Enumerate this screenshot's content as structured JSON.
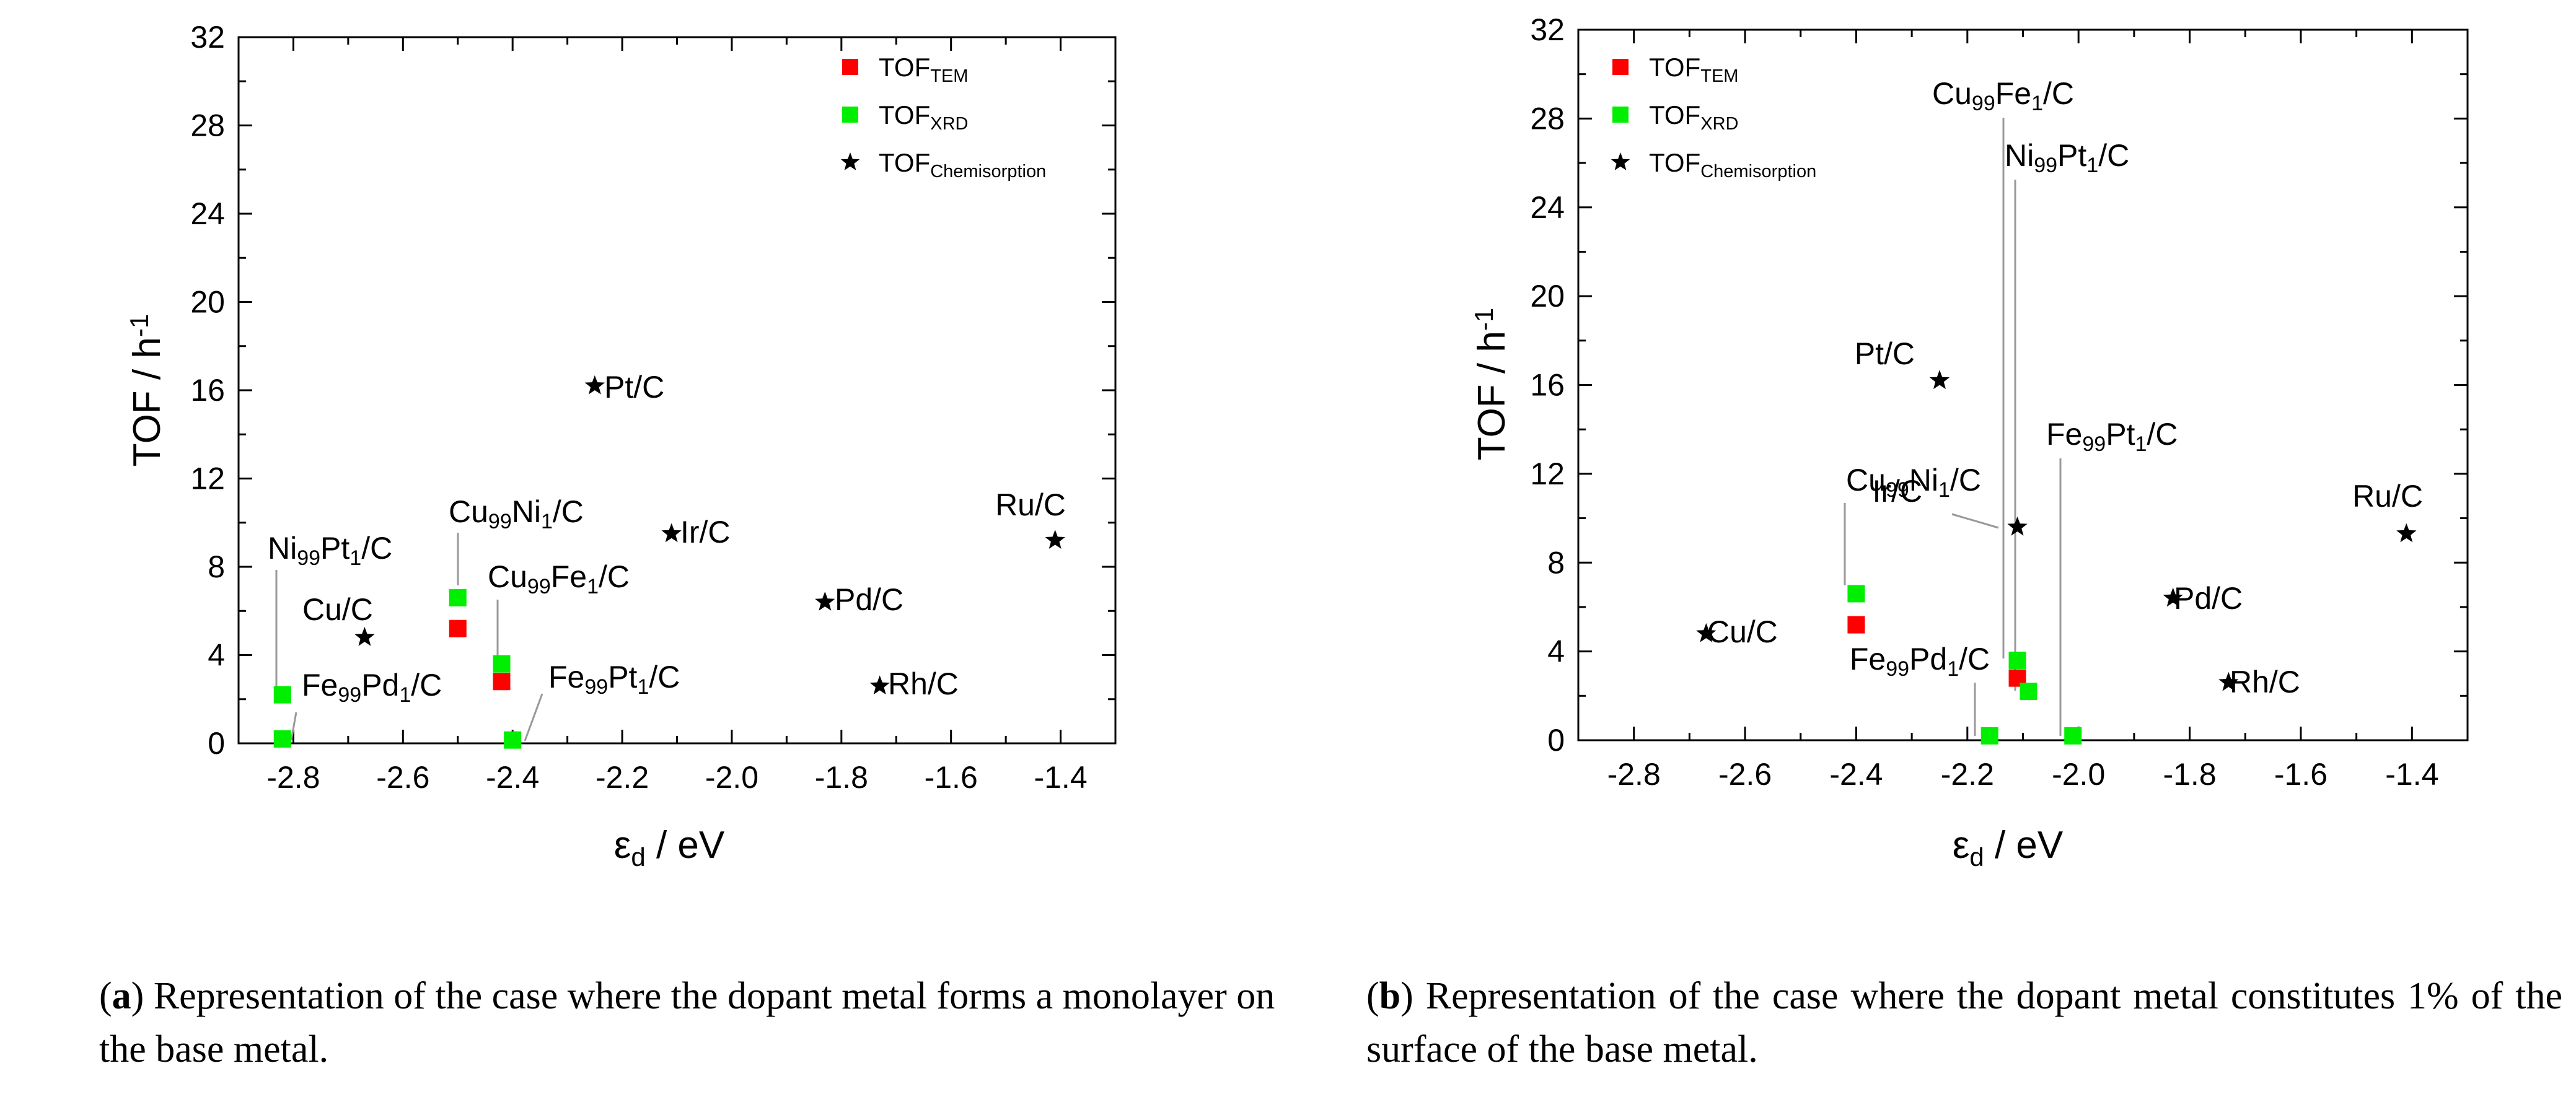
{
  "chart_data": [
    {
      "type": "scatter",
      "panel": "a",
      "xlabel": "ε",
      "xlabel_sub": "d",
      "xlabel_unit": "/  eV",
      "ylabel": "TOF  /  h",
      "ylabel_sup": "-1",
      "xlim": [
        -2.9,
        -1.3
      ],
      "ylim": [
        0,
        32
      ],
      "xticks": [
        -2.8,
        -2.6,
        -2.4,
        -2.2,
        -2.0,
        -1.8,
        -1.6,
        -1.4
      ],
      "yticks": [
        0,
        4,
        8,
        12,
        16,
        20,
        24,
        28,
        32
      ],
      "legend": [
        {
          "marker": "square",
          "color": "#ff0000",
          "label": "TOF",
          "sub": "TEM"
        },
        {
          "marker": "square",
          "color": "#00ee00",
          "label": "TOF",
          "sub": "XRD"
        },
        {
          "marker": "star",
          "color": "#000000",
          "label": "TOF",
          "sub": "Chemisorption"
        }
      ],
      "series": [
        {
          "name": "TOF_TEM",
          "marker": "square",
          "color": "#ff0000",
          "points": [
            {
              "x": -2.5,
              "y": 5.2
            },
            {
              "x": -2.42,
              "y": 2.8
            }
          ]
        },
        {
          "name": "TOF_XRD",
          "marker": "square",
          "color": "#00ee00",
          "points": [
            {
              "x": -2.82,
              "y": 2.2
            },
            {
              "x": -2.82,
              "y": 0.2
            },
            {
              "x": -2.5,
              "y": 6.6
            },
            {
              "x": -2.42,
              "y": 3.6
            },
            {
              "x": -2.4,
              "y": 0.15
            }
          ]
        },
        {
          "name": "TOF_Chemisorption",
          "marker": "star",
          "color": "#000000",
          "points": [
            {
              "x": -2.67,
              "y": 4.8
            },
            {
              "x": -2.25,
              "y": 16.2
            },
            {
              "x": -2.11,
              "y": 9.5
            },
            {
              "x": -1.83,
              "y": 6.4
            },
            {
              "x": -1.73,
              "y": 2.6
            },
            {
              "x": -1.41,
              "y": 9.2
            }
          ]
        }
      ],
      "annotations": [
        {
          "main": "Ni",
          "sub1": "99",
          "mid": "Pt",
          "sub2": "1",
          "tail": "/C"
        },
        {
          "main": "Fe",
          "sub1": "99",
          "mid": "Pd",
          "sub2": "1",
          "tail": "/C"
        },
        {
          "main": "Cu/C"
        },
        {
          "main": "Cu",
          "sub1": "99",
          "mid": "Ni",
          "sub2": "1",
          "tail": "/C"
        },
        {
          "main": "Cu",
          "sub1": "99",
          "mid": "Fe",
          "sub2": "1",
          "tail": "/C"
        },
        {
          "main": "Fe",
          "sub1": "99",
          "mid": "Pt",
          "sub2": "1",
          "tail": "/C"
        },
        {
          "main": "Pt/C"
        },
        {
          "main": "Ir/C"
        },
        {
          "main": "Pd/C"
        },
        {
          "main": "Rh/C"
        },
        {
          "main": "Ru/C"
        }
      ]
    },
    {
      "type": "scatter",
      "panel": "b",
      "xlabel": "ε",
      "xlabel_sub": "d",
      "xlabel_unit": "/  eV",
      "ylabel": "TOF  /  h",
      "ylabel_sup": "-1",
      "xlim": [
        -2.9,
        -1.3
      ],
      "ylim": [
        0,
        32
      ],
      "xticks": [
        -2.8,
        -2.6,
        -2.4,
        -2.2,
        -2.0,
        -1.8,
        -1.6,
        -1.4
      ],
      "yticks": [
        0,
        4,
        8,
        12,
        16,
        20,
        24,
        28,
        32
      ],
      "legend": [
        {
          "marker": "square",
          "color": "#ff0000",
          "label": "TOF",
          "sub": "TEM"
        },
        {
          "marker": "square",
          "color": "#00ee00",
          "label": "TOF",
          "sub": "XRD"
        },
        {
          "marker": "star",
          "color": "#000000",
          "label": "TOF",
          "sub": "Chemisorption"
        }
      ],
      "series": [
        {
          "name": "TOF_TEM",
          "marker": "square",
          "color": "#ff0000",
          "points": [
            {
              "x": -2.4,
              "y": 5.2
            },
            {
              "x": -2.11,
              "y": 2.8
            }
          ]
        },
        {
          "name": "TOF_XRD",
          "marker": "square",
          "color": "#00ee00",
          "points": [
            {
              "x": -2.4,
              "y": 6.6
            },
            {
              "x": -2.11,
              "y": 3.6
            },
            {
              "x": -2.09,
              "y": 2.2
            },
            {
              "x": -2.16,
              "y": 0.2
            },
            {
              "x": -2.01,
              "y": 0.2
            }
          ]
        },
        {
          "name": "TOF_Chemisorption",
          "marker": "star",
          "color": "#000000",
          "points": [
            {
              "x": -2.67,
              "y": 4.8
            },
            {
              "x": -2.25,
              "y": 16.2
            },
            {
              "x": -2.11,
              "y": 9.6
            },
            {
              "x": -1.83,
              "y": 6.4
            },
            {
              "x": -1.73,
              "y": 2.6
            },
            {
              "x": -1.41,
              "y": 9.3
            }
          ]
        }
      ],
      "annotations": [
        {
          "main": "Cu",
          "sub1": "99",
          "mid": "Fe",
          "sub2": "1",
          "tail": "/C"
        },
        {
          "main": "Ni",
          "sub1": "99",
          "mid": "Pt",
          "sub2": "1",
          "tail": "/C"
        },
        {
          "main": "Pt/C"
        },
        {
          "main": "Fe",
          "sub1": "99",
          "mid": "Pt",
          "sub2": "1",
          "tail": "/C"
        },
        {
          "main": "Cu",
          "sub1": "99",
          "mid": "Ni",
          "sub2": "1",
          "tail": "/C"
        },
        {
          "main": "Ir/C"
        },
        {
          "main": "Ru/C"
        },
        {
          "main": "Pd/C"
        },
        {
          "main": "Cu/C"
        },
        {
          "main": "Fe",
          "sub1": "99",
          "mid": "Pd",
          "sub2": "1",
          "tail": "/C"
        },
        {
          "main": "Rh/C"
        }
      ]
    }
  ],
  "captions": {
    "a_label": "a",
    "a_text": " Representation of the case where the dopant metal forms a monolayer on the base metal.",
    "b_label": "b",
    "b_text": " Representation of the case where the dopant metal constitutes 1% of the surface of the base metal."
  }
}
